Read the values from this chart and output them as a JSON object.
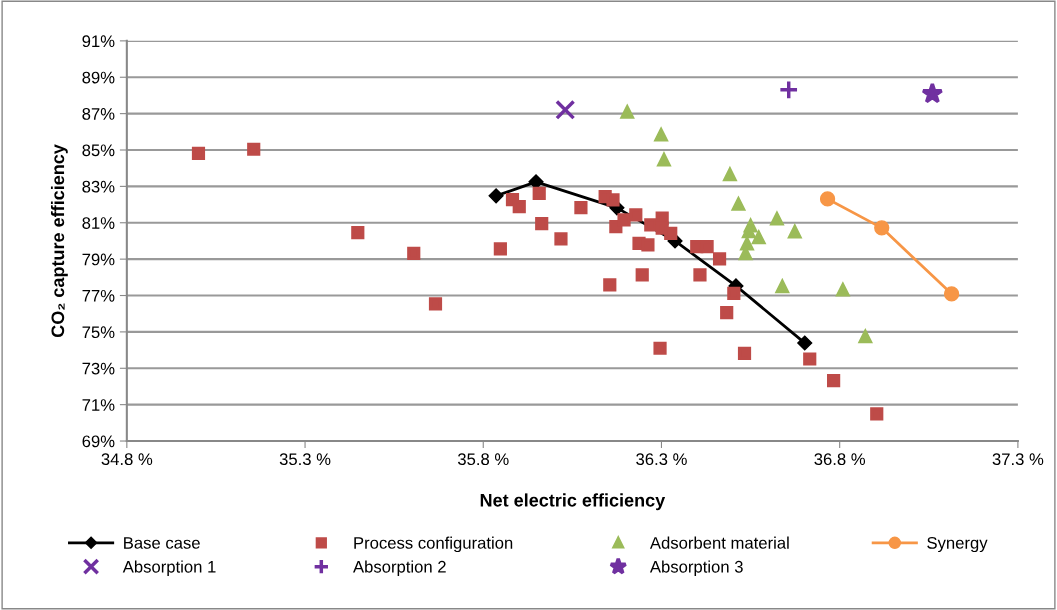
{
  "chart_data": {
    "type": "scatter",
    "xlabel": "Net electric efficiency",
    "ylabel": "CO₂ capture efficiency",
    "xlim": [
      34.8,
      37.3
    ],
    "ylim": [
      69,
      91
    ],
    "xticks": [
      {
        "value": 34.8,
        "label": "34.8 %"
      },
      {
        "value": 35.3,
        "label": "35.3 %"
      },
      {
        "value": 35.8,
        "label": "35.8 %"
      },
      {
        "value": 36.3,
        "label": "36.3 %"
      },
      {
        "value": 36.8,
        "label": "36.8 %"
      },
      {
        "value": 37.3,
        "label": "37.3 %"
      }
    ],
    "yticks": [
      {
        "value": 69,
        "label": "69%"
      },
      {
        "value": 71,
        "label": "71%"
      },
      {
        "value": 73,
        "label": "73%"
      },
      {
        "value": 75,
        "label": "75%"
      },
      {
        "value": 77,
        "label": "77%"
      },
      {
        "value": 79,
        "label": "79%"
      },
      {
        "value": 81,
        "label": "81%"
      },
      {
        "value": 83,
        "label": "83%"
      },
      {
        "value": 85,
        "label": "85%"
      },
      {
        "value": 87,
        "label": "87%"
      },
      {
        "value": 89,
        "label": "89%"
      },
      {
        "value": 91,
        "label": "91%"
      }
    ],
    "grid": "y",
    "legend": "bottom",
    "series": [
      {
        "name": "Base case",
        "type": "line",
        "marker": "diamond",
        "color": "#000000",
        "x": [
          35.836,
          35.948,
          36.175,
          36.338,
          36.509,
          36.702
        ],
        "values": [
          82.48,
          83.25,
          81.82,
          80.0,
          77.53,
          74.39
        ]
      },
      {
        "name": "Process configuration",
        "marker": "square",
        "color": "#be4b48",
        "x": [
          35.001,
          35.156,
          35.448,
          35.605,
          35.666,
          35.848,
          35.882,
          35.901,
          35.957,
          35.964,
          36.018,
          36.074,
          36.142,
          36.164,
          36.172,
          36.195,
          36.228,
          36.237,
          36.262,
          36.246,
          36.155,
          36.27,
          36.302,
          36.302,
          36.326,
          36.399,
          36.428,
          36.463,
          36.408,
          36.503,
          36.483,
          36.296,
          36.533,
          36.716,
          36.783,
          36.904
        ],
        "values": [
          84.82,
          85.04,
          80.46,
          79.32,
          76.54,
          79.56,
          82.27,
          81.89,
          82.62,
          80.95,
          80.11,
          81.83,
          82.44,
          82.26,
          80.79,
          81.16,
          81.43,
          79.87,
          79.78,
          78.13,
          77.58,
          80.88,
          81.25,
          80.7,
          80.42,
          79.69,
          79.69,
          79.01,
          78.13,
          77.12,
          76.06,
          74.1,
          73.82,
          73.51,
          72.32,
          70.49
        ]
      },
      {
        "name": "Adsorbent material",
        "marker": "triangle",
        "color": "#9bbb59",
        "x": [
          36.204,
          36.299,
          36.307,
          36.492,
          36.516,
          36.624,
          36.55,
          36.545,
          36.573,
          36.54,
          36.536,
          36.639,
          36.674,
          36.872,
          36.809
        ],
        "values": [
          87.08,
          85.83,
          84.46,
          83.65,
          82.02,
          81.21,
          80.83,
          80.51,
          80.18,
          79.84,
          79.3,
          77.49,
          80.5,
          74.74,
          77.31
        ]
      },
      {
        "name": "Synergy",
        "type": "line",
        "marker": "circle",
        "color": "#f79646",
        "x": [
          36.766,
          36.918,
          37.114
        ],
        "values": [
          82.31,
          80.72,
          77.09
        ]
      },
      {
        "name": "Absorption 1",
        "marker": "cross",
        "color": "#7030a0",
        "x": [
          36.03
        ],
        "values": [
          87.21
        ]
      },
      {
        "name": "Absorption 2",
        "marker": "plus",
        "color": "#7030a0",
        "x": [
          36.657
        ],
        "values": [
          88.31
        ]
      },
      {
        "name": "Absorption 3",
        "marker": "star",
        "color": "#7030a0",
        "x": [
          37.06
        ],
        "values": [
          88.09
        ]
      }
    ]
  }
}
